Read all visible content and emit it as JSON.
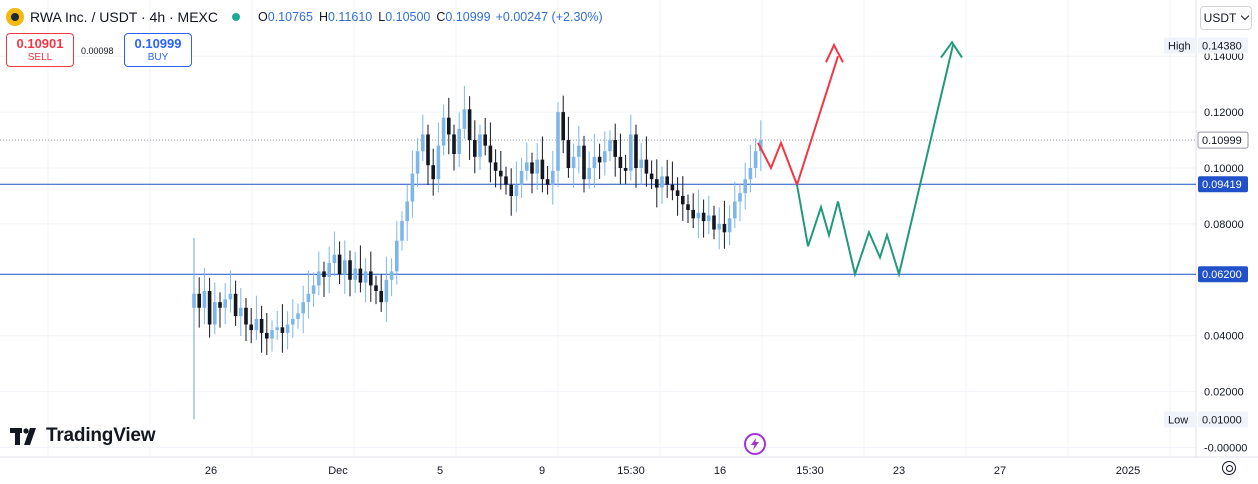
{
  "header": {
    "title": "RWA Inc. / USDT · 4h · MEXC",
    "ohlc": [
      {
        "key": "O",
        "value": "0.10765"
      },
      {
        "key": "H",
        "value": "0.11610"
      },
      {
        "key": "L",
        "value": "0.10500"
      },
      {
        "key": "C",
        "value": "0.10999"
      }
    ],
    "change": "+0.00247 (+2.30%)"
  },
  "trade": {
    "sell_price": "0.10901",
    "sell_label": "SELL",
    "spread": "0.00098",
    "buy_price": "0.10999",
    "buy_label": "BUY"
  },
  "currency": "USDT",
  "brand": "TradingView",
  "colors": {
    "up": "#26a69a",
    "candle_up_fill": "#7eb6ea",
    "candle_down": "#131722",
    "level_line": "#2151c8",
    "projection_up_red": "#f23645",
    "projection_green": "#22997b",
    "accent": "#2962ff"
  },
  "chart_data": {
    "type": "candlestick",
    "timeframe": "4h",
    "ylim": [
      -0.005,
      0.15
    ],
    "price_axis_ticks": [
      "0.14000",
      "0.12000",
      "0.10000",
      "0.08000",
      "0.04000",
      "0.02000",
      "-0.00000"
    ],
    "time_axis_ticks": [
      "26",
      "Dec",
      "5",
      "9",
      "15:30",
      "16",
      "15:30",
      "23",
      "27",
      "2025"
    ],
    "price_labels": [
      {
        "name": "High",
        "value": "0.14380"
      },
      {
        "name": "",
        "value": "0.10999"
      },
      {
        "name": "",
        "value": "0.09419"
      },
      {
        "name": "",
        "value": "0.06200"
      },
      {
        "name": "Low",
        "value": "0.01000"
      }
    ],
    "horizontal_levels": [
      0.09419,
      0.062
    ],
    "last_price": 0.10999,
    "series_close": [
      0.055,
      0.05,
      0.056,
      0.044,
      0.052,
      0.05,
      0.053,
      0.055,
      0.047,
      0.05,
      0.044,
      0.042,
      0.046,
      0.041,
      0.039,
      0.042,
      0.043,
      0.041,
      0.044,
      0.046,
      0.048,
      0.052,
      0.055,
      0.058,
      0.063,
      0.061,
      0.066,
      0.069,
      0.062,
      0.067,
      0.06,
      0.064,
      0.059,
      0.063,
      0.058,
      0.056,
      0.052,
      0.06,
      0.063,
      0.074,
      0.081,
      0.088,
      0.098,
      0.106,
      0.112,
      0.101,
      0.096,
      0.108,
      0.118,
      0.112,
      0.105,
      0.114,
      0.121,
      0.11,
      0.104,
      0.112,
      0.108,
      0.102,
      0.099,
      0.097,
      0.094,
      0.09,
      0.094,
      0.099,
      0.102,
      0.098,
      0.103,
      0.096,
      0.094,
      0.099,
      0.12,
      0.11,
      0.1,
      0.104,
      0.108,
      0.096,
      0.1,
      0.104,
      0.102,
      0.106,
      0.11,
      0.104,
      0.1,
      0.099,
      0.112,
      0.1,
      0.103,
      0.098,
      0.096,
      0.093,
      0.097,
      0.094,
      0.092,
      0.09,
      0.087,
      0.085,
      0.082,
      0.084,
      0.081,
      0.083,
      0.078,
      0.08,
      0.077,
      0.082,
      0.088,
      0.091,
      0.096,
      0.1,
      0.106,
      0.10999
    ],
    "projection_red": [
      [
        0.109,
        "start"
      ],
      [
        0.1,
        ""
      ],
      [
        0.109,
        ""
      ],
      [
        0.094,
        ""
      ],
      [
        0.14,
        ""
      ]
    ],
    "projection_green": [
      [
        0.094,
        "start"
      ],
      [
        0.072,
        ""
      ],
      [
        0.086,
        ""
      ],
      [
        0.076,
        ""
      ],
      [
        0.088,
        ""
      ],
      [
        0.062,
        ""
      ],
      [
        0.077,
        ""
      ],
      [
        0.068,
        ""
      ],
      [
        0.076,
        ""
      ],
      [
        0.062,
        ""
      ],
      [
        0.144,
        ""
      ]
    ]
  }
}
